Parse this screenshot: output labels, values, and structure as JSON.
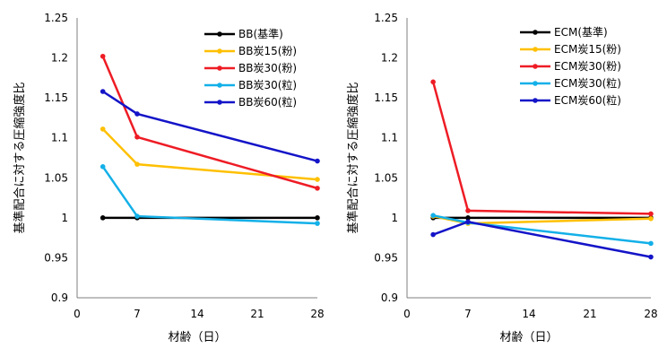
{
  "chart_data": [
    {
      "type": "line",
      "xlabel": "材齢（日）",
      "ylabel": "基準配合に対する圧縮強度比",
      "xlim": [
        0,
        28
      ],
      "ylim": [
        0.9,
        1.25
      ],
      "xticks": [
        "0",
        "7",
        "14",
        "21",
        "28"
      ],
      "yticks": [
        "0.9",
        "0.95",
        "1",
        "1.05",
        "1.1",
        "1.15",
        "1.2",
        "1.25"
      ],
      "grid": false,
      "legend_position": "top-right",
      "series": [
        {
          "name": "BB(基準)",
          "color": "#000000",
          "x": [
            3,
            7,
            28
          ],
          "y": [
            1.0,
            1.0,
            1.0
          ]
        },
        {
          "name": "BB炭15(粉)",
          "color": "#FFC000",
          "x": [
            3,
            7,
            28
          ],
          "y": [
            1.111,
            1.067,
            1.048
          ]
        },
        {
          "name": "BB炭30(粉)",
          "color": "#EE1C25",
          "x": [
            3,
            7,
            28
          ],
          "y": [
            1.202,
            1.101,
            1.037
          ]
        },
        {
          "name": "BB炭30(粒)",
          "color": "#13B0E8",
          "x": [
            3,
            7,
            28
          ],
          "y": [
            1.064,
            1.002,
            0.993
          ]
        },
        {
          "name": "BB炭60(粒)",
          "color": "#1414C8",
          "x": [
            3,
            7,
            28
          ],
          "y": [
            1.158,
            1.13,
            1.071
          ]
        }
      ]
    },
    {
      "type": "line",
      "xlabel": "材齢（日）",
      "ylabel": "基準配合に対する圧縮強度比",
      "xlim": [
        0,
        28
      ],
      "ylim": [
        0.9,
        1.25
      ],
      "xticks": [
        "0",
        "7",
        "14",
        "21",
        "28"
      ],
      "yticks": [
        "0.9",
        "0.95",
        "1",
        "1.05",
        "1.1",
        "1.15",
        "1.2",
        "1.25"
      ],
      "grid": false,
      "legend_position": "top-right",
      "series": [
        {
          "name": "ECM(基準)",
          "color": "#000000",
          "x": [
            3,
            7,
            28
          ],
          "y": [
            1.0,
            1.0,
            1.0
          ]
        },
        {
          "name": "ECM炭15(粉)",
          "color": "#FFC000",
          "x": [
            3,
            7,
            28
          ],
          "y": [
            1.002,
            0.993,
            0.999
          ]
        },
        {
          "name": "ECM炭30(粉)",
          "color": "#EE1C25",
          "x": [
            3,
            7,
            28
          ],
          "y": [
            1.17,
            1.009,
            1.005
          ]
        },
        {
          "name": "ECM炭30(粒)",
          "color": "#13B0E8",
          "x": [
            3,
            7,
            28
          ],
          "y": [
            1.003,
            0.994,
            0.968
          ]
        },
        {
          "name": "ECM炭60(粒)",
          "color": "#1414C8",
          "x": [
            3,
            7,
            28
          ],
          "y": [
            0.979,
            0.995,
            0.951
          ]
        }
      ]
    }
  ]
}
